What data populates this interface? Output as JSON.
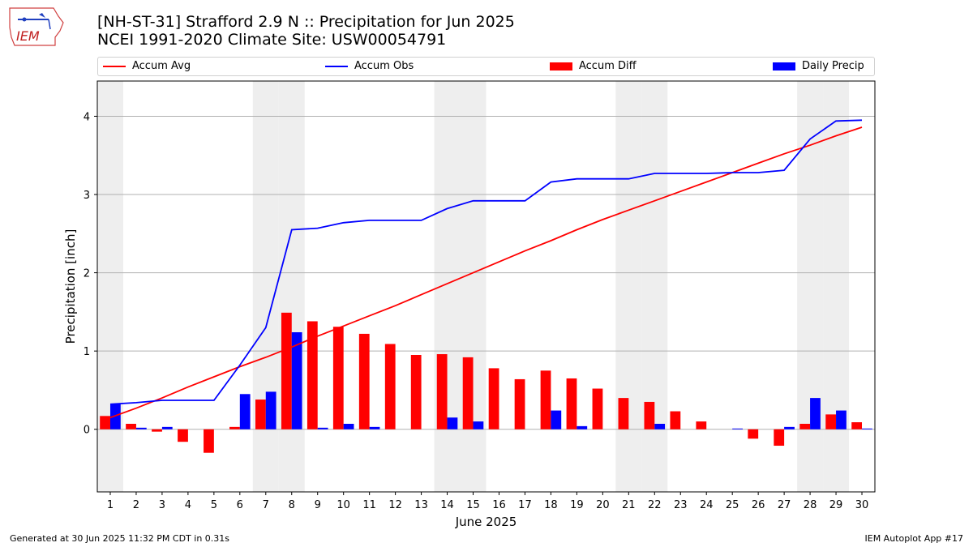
{
  "title_line1": "[NH-ST-31] Strafford 2.9 N :: Precipitation for Jun 2025",
  "title_line2": "NCEI 1991-2020 Climate Site: USW00054791",
  "logo_text": "IEM",
  "footer_left": "Generated at 30 Jun 2025 11:32 PM CDT in 0.31s",
  "footer_right": "IEM Autoplot App #17",
  "legend": [
    {
      "label": "Accum Avg",
      "color": "#ff0000",
      "kind": "line"
    },
    {
      "label": "Accum Obs",
      "color": "#0000ff",
      "kind": "line"
    },
    {
      "label": "Accum Diff",
      "color": "#ff0000",
      "kind": "box"
    },
    {
      "label": "Daily Precip",
      "color": "#0000ff",
      "kind": "box"
    }
  ],
  "colors": {
    "avg": "#ff0000",
    "obs": "#0000ff",
    "shade": "#eeeeee",
    "grid": "#b0b0b0"
  },
  "chart_data": {
    "type": "bar",
    "xlabel": "June 2025",
    "ylabel": "Precipitation [inch]",
    "xlim": [
      0.5,
      30.5
    ],
    "ylim": [
      -0.8,
      4.45
    ],
    "yticks": [
      0,
      1,
      2,
      3,
      4
    ],
    "grid": "horizontal",
    "weekend_days": [
      1,
      7,
      8,
      14,
      15,
      21,
      22,
      28,
      29
    ],
    "x": [
      1,
      2,
      3,
      4,
      5,
      6,
      7,
      8,
      9,
      10,
      11,
      12,
      13,
      14,
      15,
      16,
      17,
      18,
      19,
      20,
      21,
      22,
      23,
      24,
      25,
      26,
      27,
      28,
      29,
      30
    ],
    "series": [
      {
        "name": "Accum Avg",
        "type": "line",
        "values": [
          0.15,
          0.27,
          0.4,
          0.54,
          0.67,
          0.8,
          0.92,
          1.05,
          1.19,
          1.32,
          1.45,
          1.58,
          1.72,
          1.86,
          2.0,
          2.14,
          2.28,
          2.41,
          2.55,
          2.68,
          2.8,
          2.92,
          3.04,
          3.16,
          3.28,
          3.4,
          3.52,
          3.63,
          3.75,
          3.86
        ]
      },
      {
        "name": "Accum Obs",
        "type": "line",
        "values": [
          0.32,
          0.34,
          0.37,
          0.37,
          0.37,
          0.82,
          1.3,
          2.55,
          2.57,
          2.64,
          2.67,
          2.67,
          2.67,
          2.82,
          2.92,
          2.92,
          2.92,
          3.16,
          3.2,
          3.2,
          3.2,
          3.27,
          3.27,
          3.27,
          3.28,
          3.28,
          3.31,
          3.71,
          3.94,
          3.95
        ]
      },
      {
        "name": "Accum Diff",
        "type": "bar",
        "values": [
          0.17,
          0.07,
          -0.03,
          -0.16,
          -0.3,
          0.03,
          0.38,
          1.49,
          1.38,
          1.31,
          1.22,
          1.09,
          0.95,
          0.96,
          0.92,
          0.78,
          0.64,
          0.75,
          0.65,
          0.52,
          0.4,
          0.35,
          0.23,
          0.1,
          0.0,
          -0.12,
          -0.21,
          0.07,
          0.19,
          0.09
        ]
      },
      {
        "name": "Daily Precip",
        "type": "bar",
        "values": [
          0.32,
          0.02,
          0.03,
          0.0,
          0.0,
          0.45,
          0.48,
          1.24,
          0.02,
          0.07,
          0.03,
          0.0,
          0.0,
          0.15,
          0.1,
          0.0,
          0.0,
          0.24,
          0.04,
          0.0,
          0.0,
          0.07,
          0.0,
          0.0,
          0.01,
          0.0,
          0.03,
          0.4,
          0.24,
          0.01
        ]
      }
    ]
  }
}
